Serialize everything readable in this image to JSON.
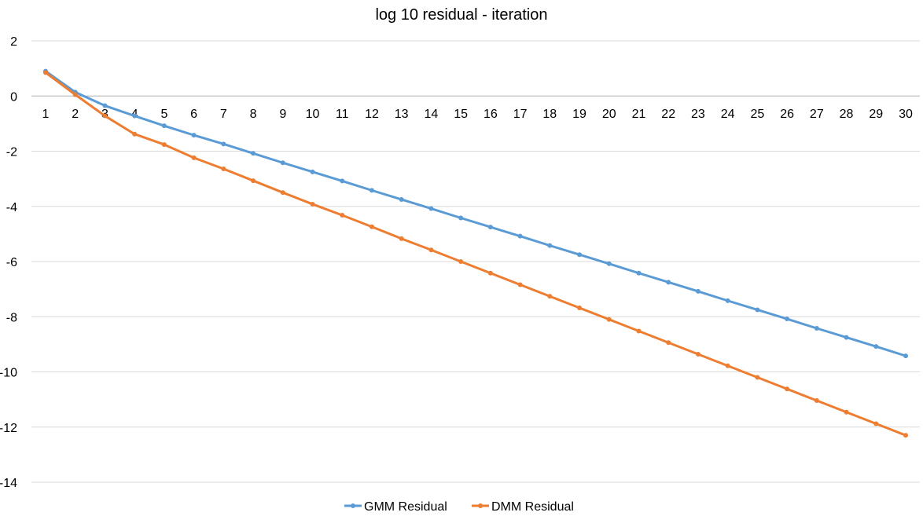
{
  "chart_data": {
    "type": "line",
    "title": "log 10 residual - iteration",
    "xlabel": "",
    "ylabel": "",
    "x": [
      1,
      2,
      3,
      4,
      5,
      6,
      7,
      8,
      9,
      10,
      11,
      12,
      13,
      14,
      15,
      16,
      17,
      18,
      19,
      20,
      21,
      22,
      23,
      24,
      25,
      26,
      27,
      28,
      29,
      30
    ],
    "ylim": [
      -14,
      2
    ],
    "yticks": [
      2,
      0,
      -2,
      -4,
      -6,
      -8,
      -10,
      -12,
      -14
    ],
    "grid": true,
    "legend_position": "bottom",
    "series": [
      {
        "name": "GMM Residual",
        "color": "#5b9bd5",
        "values": [
          0.9,
          0.14,
          -0.35,
          -0.72,
          -1.08,
          -1.42,
          -1.74,
          -2.08,
          -2.42,
          -2.75,
          -3.08,
          -3.42,
          -3.75,
          -4.08,
          -4.42,
          -4.75,
          -5.08,
          -5.42,
          -5.75,
          -6.08,
          -6.42,
          -6.75,
          -7.08,
          -7.42,
          -7.75,
          -8.08,
          -8.42,
          -8.75,
          -9.08,
          -9.42
        ]
      },
      {
        "name": "DMM Residual",
        "color": "#ed7d31",
        "values": [
          0.85,
          0.05,
          -0.72,
          -1.38,
          -1.76,
          -2.24,
          -2.64,
          -3.07,
          -3.5,
          -3.92,
          -4.32,
          -4.74,
          -5.17,
          -5.58,
          -6.0,
          -6.42,
          -6.84,
          -7.26,
          -7.68,
          -8.1,
          -8.52,
          -8.94,
          -9.36,
          -9.78,
          -10.2,
          -10.62,
          -11.04,
          -11.46,
          -11.88,
          -12.3
        ]
      }
    ]
  }
}
